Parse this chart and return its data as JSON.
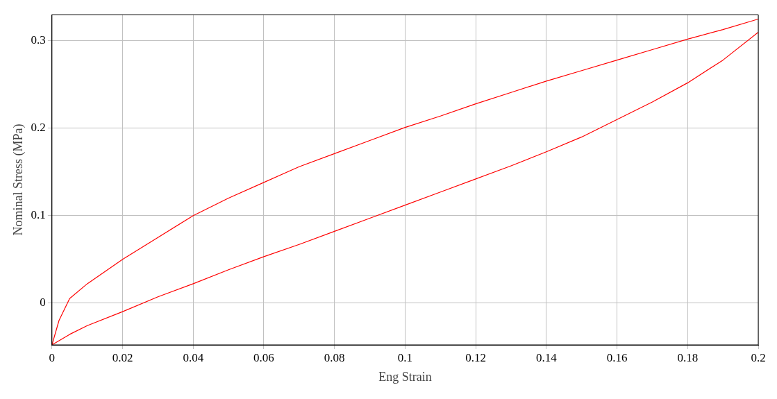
{
  "chart_data": {
    "type": "line",
    "xlabel": "Eng Strain",
    "ylabel": "Nominal Stress (MPa)",
    "xlim": [
      0,
      0.2
    ],
    "ylim": [
      -0.048,
      0.33
    ],
    "xticks": [
      0,
      0.02,
      0.04,
      0.06,
      0.08,
      0.1,
      0.12,
      0.14,
      0.16,
      0.18,
      0.2
    ],
    "yticks": [
      0,
      0.1,
      0.2,
      0.3
    ],
    "grid": true,
    "legend": false,
    "marker": "none",
    "line_style": "solid",
    "series": [
      {
        "color": "#ff0000",
        "x": [
          0,
          0.002,
          0.005,
          0.01,
          0.02,
          0.03,
          0.04,
          0.05,
          0.06,
          0.07,
          0.08,
          0.09,
          0.1,
          0.11,
          0.12,
          0.13,
          0.14,
          0.15,
          0.16,
          0.17,
          0.18,
          0.19,
          0.2
        ],
        "values": [
          -0.048,
          -0.02,
          0.005,
          0.022,
          0.05,
          0.075,
          0.1,
          0.12,
          0.138,
          0.156,
          0.171,
          0.186,
          0.201,
          0.214,
          0.228,
          0.241,
          0.254,
          0.266,
          0.278,
          0.29,
          0.302,
          0.313,
          0.325
        ]
      },
      {
        "color": "#ff0000",
        "x": [
          0.2,
          0.19,
          0.18,
          0.17,
          0.16,
          0.15,
          0.14,
          0.13,
          0.12,
          0.11,
          0.1,
          0.09,
          0.08,
          0.07,
          0.06,
          0.05,
          0.04,
          0.03,
          0.02,
          0.01,
          0.005,
          0
        ],
        "values": [
          0.31,
          0.278,
          0.252,
          0.23,
          0.21,
          0.19,
          0.173,
          0.157,
          0.142,
          0.127,
          0.112,
          0.097,
          0.082,
          0.067,
          0.053,
          0.038,
          0.022,
          0.007,
          -0.01,
          -0.026,
          -0.036,
          -0.048
        ]
      }
    ]
  }
}
